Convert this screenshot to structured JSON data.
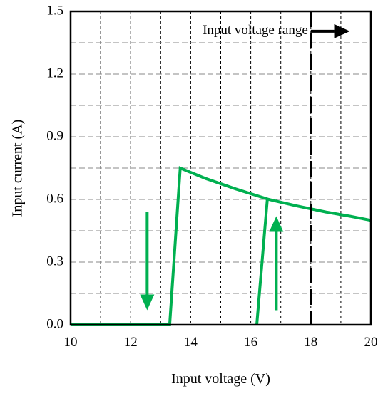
{
  "chart_data": {
    "type": "line",
    "title": "",
    "xlabel": "Input voltage (V)",
    "ylabel": "Input current (A)",
    "xlim": [
      10,
      20
    ],
    "ylim": [
      0,
      1.5
    ],
    "x_ticks": [
      10,
      12,
      14,
      16,
      18,
      20
    ],
    "x_tick_labels": [
      "10",
      "12",
      "14",
      "16",
      "18",
      "20"
    ],
    "y_ticks": [
      0.0,
      0.3,
      0.6,
      0.9,
      1.2,
      1.5
    ],
    "y_tick_labels": [
      "0.0",
      "0.3",
      "0.6",
      "0.9",
      "1.2",
      "1.5"
    ],
    "grid": true,
    "series": [
      {
        "color": "#00b050",
        "points": [
          [
            10,
            0
          ],
          [
            13.3,
            0
          ],
          [
            13.65,
            0.75
          ],
          [
            14.5,
            0.7
          ],
          [
            15.5,
            0.65
          ],
          [
            16.6,
            0.6
          ],
          [
            17.5,
            0.57
          ],
          [
            18.5,
            0.54
          ],
          [
            19.3,
            0.52
          ],
          [
            20,
            0.5
          ]
        ]
      },
      {
        "color": "#00b050",
        "points": [
          [
            16.2,
            0
          ],
          [
            16.55,
            0.6
          ]
        ]
      }
    ],
    "arrows": [
      {
        "color": "#00b050",
        "from": [
          12.55,
          0.54
        ],
        "to": [
          12.55,
          0.07
        ]
      },
      {
        "color": "#00b050",
        "from": [
          16.85,
          0.07
        ],
        "to": [
          16.85,
          0.52
        ]
      },
      {
        "color": "#000000",
        "from": [
          18.0,
          1.405
        ],
        "to": [
          19.3,
          1.405
        ]
      }
    ],
    "threshold": {
      "x": 18,
      "color": "#000000",
      "style": "dashed"
    },
    "annotation": {
      "text": "Input voltage range",
      "x": 15.75,
      "y": 1.405
    }
  }
}
